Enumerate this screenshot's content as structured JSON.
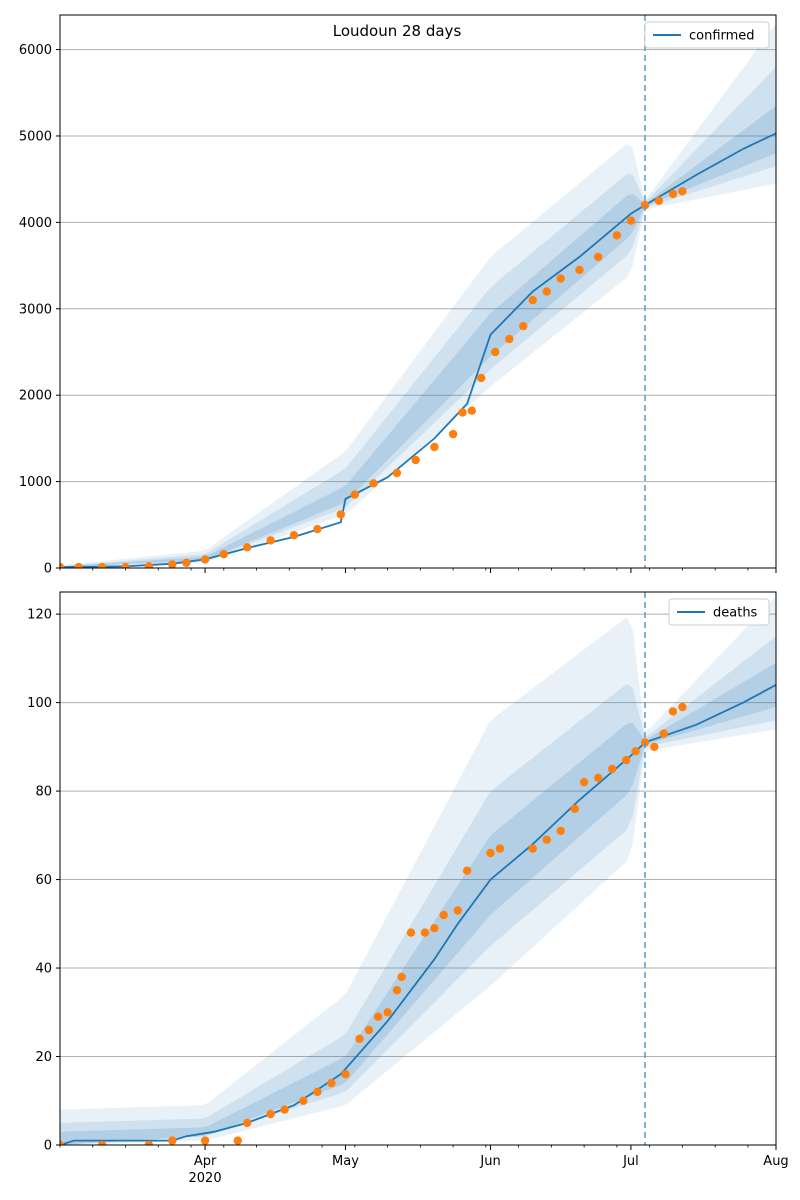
{
  "figure": {
    "title": "Loudoun 28 days"
  },
  "colors": {
    "line": "#1f77b4",
    "points": "#ff7f0e",
    "band": "#1f77b4",
    "grid": "#b0b0b0",
    "forecast_line": "#5a9bc6"
  },
  "x_axis": {
    "start": "2020-03-01",
    "end": "2020-08-01",
    "major_ticks": [
      {
        "date": "2020-04-01",
        "label": "Apr",
        "sublabel": "2020"
      },
      {
        "date": "2020-05-01",
        "label": "May",
        "sublabel": ""
      },
      {
        "date": "2020-06-01",
        "label": "Jun",
        "sublabel": ""
      },
      {
        "date": "2020-07-01",
        "label": "Jul",
        "sublabel": ""
      },
      {
        "date": "2020-08-01",
        "label": "Aug",
        "sublabel": ""
      }
    ],
    "forecast_start": "2020-07-04"
  },
  "chart_data": [
    {
      "type": "line",
      "legend": "confirmed",
      "legend_position": "top-right",
      "grid": "horizontal",
      "ylim": [
        0,
        6400
      ],
      "y_ticks": [
        0,
        1000,
        2000,
        3000,
        4000,
        5000,
        6000
      ],
      "line": {
        "name": "confirmed",
        "points": [
          [
            "2020-03-01",
            10
          ],
          [
            "2020-03-15",
            20
          ],
          [
            "2020-03-25",
            50
          ],
          [
            "2020-04-01",
            100
          ],
          [
            "2020-04-10",
            230
          ],
          [
            "2020-04-20",
            360
          ],
          [
            "2020-04-30",
            530
          ],
          [
            "2020-05-01",
            800
          ],
          [
            "2020-05-10",
            1050
          ],
          [
            "2020-05-20",
            1500
          ],
          [
            "2020-05-27",
            1900
          ],
          [
            "2020-06-01",
            2700
          ],
          [
            "2020-06-10",
            3200
          ],
          [
            "2020-06-20",
            3600
          ],
          [
            "2020-07-01",
            4100
          ],
          [
            "2020-07-04",
            4200
          ],
          [
            "2020-07-15",
            4550
          ],
          [
            "2020-07-25",
            4850
          ],
          [
            "2020-08-01",
            5030
          ]
        ]
      },
      "bands": [
        {
          "label": "outer",
          "lower": [
            [
              "2020-03-01",
              5
            ],
            [
              "2020-04-01",
              60
            ],
            [
              "2020-05-01",
              620
            ],
            [
              "2020-06-01",
              2100
            ],
            [
              "2020-07-01",
              3400
            ],
            [
              "2020-07-04",
              4150
            ],
            [
              "2020-08-01",
              4450
            ]
          ],
          "upper": [
            [
              "2020-03-01",
              30
            ],
            [
              "2020-04-01",
              200
            ],
            [
              "2020-05-01",
              1350
            ],
            [
              "2020-06-01",
              3600
            ],
            [
              "2020-07-01",
              4950
            ],
            [
              "2020-07-04",
              4250
            ],
            [
              "2020-08-01",
              6300
            ]
          ]
        },
        {
          "label": "middle",
          "lower": [
            [
              "2020-03-01",
              8
            ],
            [
              "2020-04-01",
              80
            ],
            [
              "2020-05-01",
              700
            ],
            [
              "2020-06-01",
              2300
            ],
            [
              "2020-07-01",
              3650
            ],
            [
              "2020-07-04",
              4170
            ],
            [
              "2020-08-01",
              4650
            ]
          ],
          "upper": [
            [
              "2020-03-01",
              22
            ],
            [
              "2020-04-01",
              160
            ],
            [
              "2020-05-01",
              1150
            ],
            [
              "2020-06-01",
              3250
            ],
            [
              "2020-07-01",
              4600
            ],
            [
              "2020-07-04",
              4230
            ],
            [
              "2020-08-01",
              5800
            ]
          ]
        },
        {
          "label": "inner",
          "lower": [
            [
              "2020-03-01",
              10
            ],
            [
              "2020-04-01",
              90
            ],
            [
              "2020-05-01",
              760
            ],
            [
              "2020-06-01",
              2450
            ],
            [
              "2020-07-01",
              3850
            ],
            [
              "2020-07-04",
              4185
            ],
            [
              "2020-08-01",
              4800
            ]
          ],
          "upper": [
            [
              "2020-03-01",
              18
            ],
            [
              "2020-04-01",
              130
            ],
            [
              "2020-05-01",
              950
            ],
            [
              "2020-06-01",
              2950
            ],
            [
              "2020-07-01",
              4350
            ],
            [
              "2020-07-04",
              4215
            ],
            [
              "2020-08-01",
              5350
            ]
          ]
        }
      ],
      "observed": {
        "name": "confirmed_observed",
        "points": [
          [
            "2020-03-01",
            10
          ],
          [
            "2020-03-05",
            10
          ],
          [
            "2020-03-10",
            10
          ],
          [
            "2020-03-15",
            10
          ],
          [
            "2020-03-20",
            20
          ],
          [
            "2020-03-25",
            40
          ],
          [
            "2020-03-28",
            60
          ],
          [
            "2020-04-01",
            100
          ],
          [
            "2020-04-05",
            160
          ],
          [
            "2020-04-10",
            240
          ],
          [
            "2020-04-15",
            320
          ],
          [
            "2020-04-20",
            380
          ],
          [
            "2020-04-25",
            450
          ],
          [
            "2020-04-30",
            620
          ],
          [
            "2020-05-03",
            850
          ],
          [
            "2020-05-07",
            980
          ],
          [
            "2020-05-12",
            1100
          ],
          [
            "2020-05-16",
            1250
          ],
          [
            "2020-05-20",
            1400
          ],
          [
            "2020-05-24",
            1550
          ],
          [
            "2020-05-26",
            1800
          ],
          [
            "2020-05-28",
            1820
          ],
          [
            "2020-05-30",
            2200
          ],
          [
            "2020-06-02",
            2500
          ],
          [
            "2020-06-05",
            2650
          ],
          [
            "2020-06-08",
            2800
          ],
          [
            "2020-06-10",
            3100
          ],
          [
            "2020-06-13",
            3200
          ],
          [
            "2020-06-16",
            3350
          ],
          [
            "2020-06-20",
            3450
          ],
          [
            "2020-06-24",
            3600
          ],
          [
            "2020-06-28",
            3850
          ],
          [
            "2020-07-01",
            4020
          ],
          [
            "2020-07-04",
            4200
          ],
          [
            "2020-07-07",
            4250
          ],
          [
            "2020-07-10",
            4330
          ],
          [
            "2020-07-12",
            4360
          ]
        ]
      }
    },
    {
      "type": "line",
      "legend": "deaths",
      "legend_position": "top-right",
      "grid": "horizontal",
      "ylim": [
        0,
        125
      ],
      "y_ticks": [
        0,
        20,
        40,
        60,
        80,
        100,
        120
      ],
      "line": {
        "name": "deaths",
        "points": [
          [
            "2020-03-01",
            0
          ],
          [
            "2020-03-04",
            1
          ],
          [
            "2020-03-25",
            1
          ],
          [
            "2020-03-28",
            2
          ],
          [
            "2020-04-03",
            3
          ],
          [
            "2020-04-10",
            5
          ],
          [
            "2020-04-20",
            9
          ],
          [
            "2020-04-30",
            16
          ],
          [
            "2020-05-05",
            22
          ],
          [
            "2020-05-10",
            28
          ],
          [
            "2020-05-15",
            35
          ],
          [
            "2020-05-20",
            42
          ],
          [
            "2020-05-25",
            50
          ],
          [
            "2020-06-01",
            60
          ],
          [
            "2020-06-10",
            68
          ],
          [
            "2020-06-20",
            78
          ],
          [
            "2020-07-01",
            88
          ],
          [
            "2020-07-04",
            91
          ],
          [
            "2020-07-15",
            95
          ],
          [
            "2020-07-25",
            100
          ],
          [
            "2020-08-01",
            104
          ]
        ]
      },
      "bands": [
        {
          "label": "outer",
          "lower": [
            [
              "2020-03-01",
              0
            ],
            [
              "2020-04-01",
              1
            ],
            [
              "2020-05-01",
              9
            ],
            [
              "2020-06-01",
              36
            ],
            [
              "2020-07-01",
              65
            ],
            [
              "2020-07-04",
              89
            ],
            [
              "2020-08-01",
              94
            ]
          ],
          "upper": [
            [
              "2020-03-01",
              8
            ],
            [
              "2020-04-01",
              9
            ],
            [
              "2020-05-01",
              34
            ],
            [
              "2020-06-01",
              96
            ],
            [
              "2020-07-01",
              120
            ],
            [
              "2020-07-04",
              93
            ],
            [
              "2020-08-01",
              124
            ]
          ]
        },
        {
          "label": "middle",
          "lower": [
            [
              "2020-03-01",
              0
            ],
            [
              "2020-04-01",
              2
            ],
            [
              "2020-05-01",
              12
            ],
            [
              "2020-06-01",
              45
            ],
            [
              "2020-07-01",
              72
            ],
            [
              "2020-07-04",
              90
            ],
            [
              "2020-08-01",
              96
            ]
          ],
          "upper": [
            [
              "2020-03-01",
              5
            ],
            [
              "2020-04-01",
              6
            ],
            [
              "2020-05-01",
              25
            ],
            [
              "2020-06-01",
              80
            ],
            [
              "2020-07-01",
              105
            ],
            [
              "2020-07-04",
              92
            ],
            [
              "2020-08-01",
              115
            ]
          ]
        },
        {
          "label": "inner",
          "lower": [
            [
              "2020-03-01",
              0
            ],
            [
              "2020-04-01",
              2
            ],
            [
              "2020-05-01",
              14
            ],
            [
              "2020-06-01",
              52
            ],
            [
              "2020-07-01",
              80
            ],
            [
              "2020-07-04",
              90.5
            ],
            [
              "2020-08-01",
              99
            ]
          ],
          "upper": [
            [
              "2020-03-01",
              3
            ],
            [
              "2020-04-01",
              4
            ],
            [
              "2020-05-01",
              20
            ],
            [
              "2020-06-01",
              70
            ],
            [
              "2020-07-01",
              96
            ],
            [
              "2020-07-04",
              91.5
            ],
            [
              "2020-08-01",
              109
            ]
          ]
        }
      ],
      "observed": {
        "name": "deaths_observed",
        "points": [
          [
            "2020-03-01",
            0
          ],
          [
            "2020-03-10",
            0
          ],
          [
            "2020-03-20",
            0
          ],
          [
            "2020-03-25",
            1
          ],
          [
            "2020-04-01",
            1
          ],
          [
            "2020-04-08",
            1
          ],
          [
            "2020-04-10",
            5
          ],
          [
            "2020-04-15",
            7
          ],
          [
            "2020-04-18",
            8
          ],
          [
            "2020-04-22",
            10
          ],
          [
            "2020-04-25",
            12
          ],
          [
            "2020-04-28",
            14
          ],
          [
            "2020-05-01",
            16
          ],
          [
            "2020-05-04",
            24
          ],
          [
            "2020-05-06",
            26
          ],
          [
            "2020-05-08",
            29
          ],
          [
            "2020-05-10",
            30
          ],
          [
            "2020-05-12",
            35
          ],
          [
            "2020-05-13",
            38
          ],
          [
            "2020-05-15",
            48
          ],
          [
            "2020-05-18",
            48
          ],
          [
            "2020-05-20",
            49
          ],
          [
            "2020-05-22",
            52
          ],
          [
            "2020-05-25",
            53
          ],
          [
            "2020-05-27",
            62
          ],
          [
            "2020-06-01",
            66
          ],
          [
            "2020-06-03",
            67
          ],
          [
            "2020-06-10",
            67
          ],
          [
            "2020-06-13",
            69
          ],
          [
            "2020-06-16",
            71
          ],
          [
            "2020-06-19",
            76
          ],
          [
            "2020-06-21",
            82
          ],
          [
            "2020-06-24",
            83
          ],
          [
            "2020-06-27",
            85
          ],
          [
            "2020-06-30",
            87
          ],
          [
            "2020-07-02",
            89
          ],
          [
            "2020-07-04",
            91
          ],
          [
            "2020-07-06",
            90
          ],
          [
            "2020-07-08",
            93
          ],
          [
            "2020-07-10",
            98
          ],
          [
            "2020-07-12",
            99
          ]
        ]
      }
    }
  ]
}
